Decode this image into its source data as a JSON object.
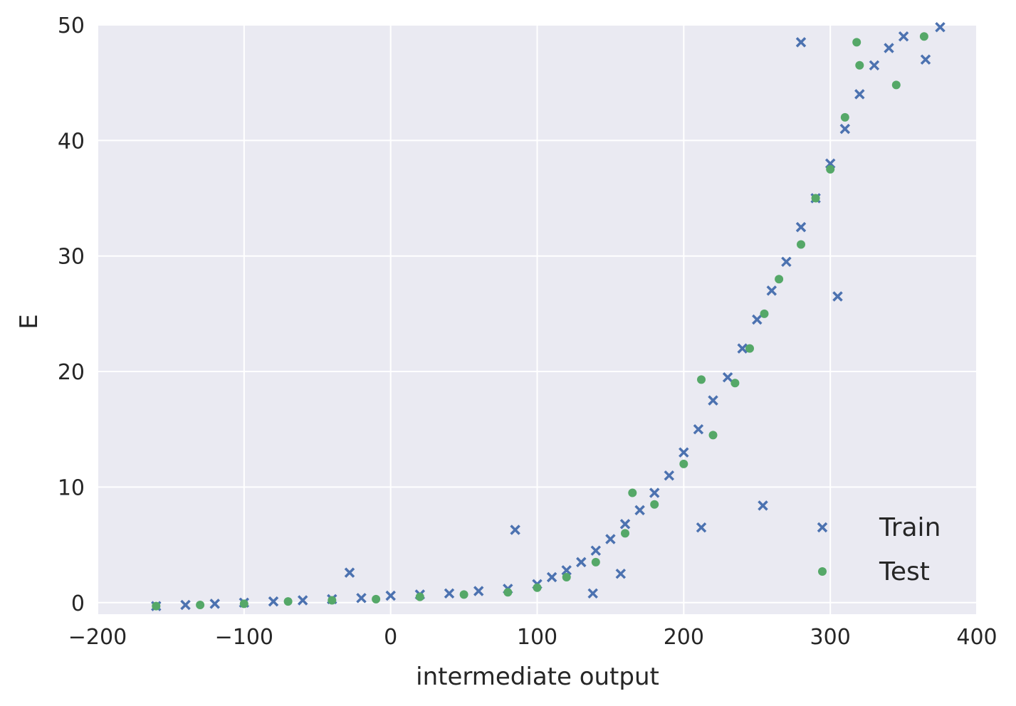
{
  "chart_data": {
    "type": "scatter",
    "title": "",
    "xlabel": "intermediate output",
    "ylabel": "E",
    "xlim": [
      -200,
      400
    ],
    "ylim": [
      -1,
      50
    ],
    "xticks": [
      -200,
      -100,
      0,
      100,
      200,
      300,
      400
    ],
    "xtick_labels": [
      "−200",
      "−100",
      "0",
      "100",
      "200",
      "300",
      "400"
    ],
    "yticks": [
      0,
      10,
      20,
      30,
      40,
      50
    ],
    "ytick_labels": [
      "0",
      "10",
      "20",
      "30",
      "40",
      "50"
    ],
    "grid": true,
    "legend_position": "lower-right",
    "series": [
      {
        "name": "Train",
        "marker": "x",
        "color": "#4c72b0",
        "points": [
          [
            -160,
            -0.3
          ],
          [
            -140,
            -0.2
          ],
          [
            -120,
            -0.1
          ],
          [
            -100,
            0.0
          ],
          [
            -80,
            0.1
          ],
          [
            -60,
            0.2
          ],
          [
            -40,
            0.3
          ],
          [
            -20,
            0.4
          ],
          [
            0,
            0.6
          ],
          [
            20,
            0.7
          ],
          [
            40,
            0.8
          ],
          [
            60,
            1.0
          ],
          [
            80,
            1.2
          ],
          [
            100,
            1.6
          ],
          [
            110,
            2.2
          ],
          [
            120,
            2.8
          ],
          [
            130,
            3.5
          ],
          [
            140,
            4.5
          ],
          [
            150,
            5.5
          ],
          [
            160,
            6.8
          ],
          [
            170,
            8.0
          ],
          [
            180,
            9.5
          ],
          [
            190,
            11.0
          ],
          [
            200,
            13.0
          ],
          [
            210,
            15.0
          ],
          [
            220,
            17.5
          ],
          [
            230,
            19.5
          ],
          [
            240,
            22.0
          ],
          [
            250,
            24.5
          ],
          [
            260,
            27.0
          ],
          [
            270,
            29.5
          ],
          [
            280,
            32.5
          ],
          [
            290,
            35.0
          ],
          [
            300,
            38.0
          ],
          [
            310,
            41.0
          ],
          [
            320,
            44.0
          ],
          [
            330,
            46.5
          ],
          [
            340,
            48.0
          ],
          [
            350,
            49.0
          ],
          [
            -28,
            2.6
          ],
          [
            85,
            6.3
          ],
          [
            254,
            8.4
          ],
          [
            212,
            6.5
          ],
          [
            280,
            48.5
          ],
          [
            305,
            26.5
          ],
          [
            157,
            2.5
          ],
          [
            138,
            0.8
          ],
          [
            375,
            49.8
          ],
          [
            365,
            47.0
          ]
        ]
      },
      {
        "name": "Test",
        "marker": "o",
        "color": "#55a868",
        "points": [
          [
            -160,
            -0.3
          ],
          [
            -130,
            -0.2
          ],
          [
            -100,
            -0.1
          ],
          [
            -70,
            0.1
          ],
          [
            -40,
            0.2
          ],
          [
            -10,
            0.3
          ],
          [
            20,
            0.5
          ],
          [
            50,
            0.7
          ],
          [
            80,
            0.9
          ],
          [
            100,
            1.3
          ],
          [
            120,
            2.2
          ],
          [
            140,
            3.5
          ],
          [
            160,
            6.0
          ],
          [
            165,
            9.5
          ],
          [
            180,
            8.5
          ],
          [
            200,
            12.0
          ],
          [
            212,
            19.3
          ],
          [
            220,
            14.5
          ],
          [
            235,
            19.0
          ],
          [
            245,
            22.0
          ],
          [
            255,
            25.0
          ],
          [
            265,
            28.0
          ],
          [
            280,
            31.0
          ],
          [
            290,
            35.0
          ],
          [
            300,
            37.5
          ],
          [
            310,
            42.0
          ],
          [
            320,
            46.5
          ],
          [
            318,
            48.5
          ],
          [
            345,
            44.8
          ],
          [
            364,
            49.0
          ]
        ]
      }
    ]
  }
}
